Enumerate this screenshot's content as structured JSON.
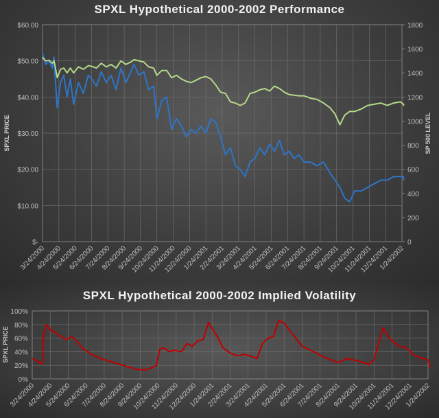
{
  "chart_data": [
    {
      "type": "line",
      "title": "SPXL Hypothetical 2000-2002 Performance",
      "ylabel": "SPXL PRICE",
      "y2label": "SP 500 LEVEL",
      "ylim": [
        0,
        60
      ],
      "y2lim": [
        0,
        1800
      ],
      "y_ticks": [
        "$60.00",
        "$50.00",
        "$40.00",
        "$30.00",
        "$20.00",
        "$10.00",
        "$-"
      ],
      "y2_ticks": [
        "1800",
        "1600",
        "1400",
        "1200",
        "1000",
        "800",
        "600",
        "400",
        "200",
        "0"
      ],
      "x_ticks": [
        "3/24/2000",
        "4/24/2000",
        "5/24/2000",
        "6/24/2000",
        "7/24/2000",
        "8/24/2000",
        "9/24/2000",
        "10/24/2000",
        "11/24/2000",
        "12/24/2000",
        "1/24/2001",
        "2/24/2001",
        "3/24/2001",
        "4/24/2001",
        "5/24/2001",
        "6/24/2001",
        "7/24/2001",
        "8/24/2001",
        "9/24/2001",
        "10/24/2001",
        "11/24/2001",
        "12/24/2001",
        "1/24/2002"
      ],
      "grid": true,
      "series": [
        {
          "name": "SPXL",
          "axis": "left",
          "color": "#2e75c8",
          "x": [
            0,
            0.2,
            0.4,
            0.6,
            0.7,
            0.75,
            0.9,
            1.1,
            1.3,
            1.5,
            1.7,
            1.9,
            2.2,
            2.5,
            2.8,
            3.0,
            3.3,
            3.6,
            3.9,
            4.2,
            4.5,
            4.8,
            5.1,
            5.4,
            5.6,
            5.9,
            6.2,
            6.5,
            6.8,
            7.0,
            7.3,
            7.6,
            7.9,
            8.2,
            8.5,
            8.8,
            9.1,
            9.4,
            9.7,
            10.0,
            10.3,
            10.6,
            10.9,
            11.2,
            11.5,
            11.8,
            12.1,
            12.4,
            12.7,
            13.0,
            13.3,
            13.6,
            13.9,
            14.2,
            14.5,
            14.8,
            15.1,
            15.4,
            15.7,
            16.0,
            16.4,
            16.8,
            17.2,
            17.6,
            17.9,
            18.2,
            18.5,
            18.8,
            19.1,
            19.5,
            19.9,
            20.3,
            20.7,
            21.1,
            21.5,
            21.9,
            22.3,
            22.6
          ],
          "values": [
            52,
            49,
            50,
            48,
            51,
            47,
            37,
            44,
            46,
            40,
            45,
            38,
            44,
            41,
            46,
            45,
            43,
            47,
            44,
            46,
            42,
            48,
            44,
            47,
            49,
            46,
            47,
            42,
            43,
            34,
            39,
            40,
            31,
            34,
            32,
            29,
            31,
            30,
            32,
            30,
            34,
            33,
            29,
            24,
            26,
            21,
            20,
            18,
            22,
            23,
            26,
            24,
            27,
            25,
            28,
            24,
            25,
            23,
            24,
            22,
            22,
            21,
            22,
            19,
            17,
            15,
            12,
            11,
            14,
            14,
            15,
            16,
            17,
            17,
            18,
            18,
            18,
            17
          ],
          "ylim_ref": "left"
        },
        {
          "name": "S&P 500",
          "axis": "right",
          "color": "#b5d98a",
          "x": [
            0,
            0.2,
            0.4,
            0.6,
            0.7,
            0.75,
            0.9,
            1.1,
            1.3,
            1.5,
            1.7,
            1.9,
            2.2,
            2.5,
            2.8,
            3.0,
            3.3,
            3.6,
            3.9,
            4.2,
            4.5,
            4.8,
            5.1,
            5.4,
            5.6,
            5.9,
            6.2,
            6.5,
            6.8,
            7.0,
            7.3,
            7.6,
            7.9,
            8.2,
            8.5,
            8.8,
            9.1,
            9.4,
            9.7,
            10.0,
            10.3,
            10.6,
            10.9,
            11.2,
            11.5,
            11.8,
            12.1,
            12.4,
            12.7,
            13.0,
            13.3,
            13.6,
            13.9,
            14.2,
            14.5,
            14.8,
            15.1,
            15.4,
            15.7,
            16.0,
            16.4,
            16.8,
            17.2,
            17.6,
            17.9,
            18.2,
            18.5,
            18.8,
            19.1,
            19.5,
            19.9,
            20.3,
            20.7,
            21.1,
            21.5,
            21.9,
            22.3,
            22.6
          ],
          "values": [
            1527,
            1500,
            1505,
            1480,
            1500,
            1470,
            1360,
            1430,
            1440,
            1400,
            1440,
            1400,
            1450,
            1430,
            1460,
            1455,
            1440,
            1480,
            1450,
            1470,
            1440,
            1500,
            1470,
            1490,
            1510,
            1500,
            1490,
            1450,
            1440,
            1380,
            1420,
            1420,
            1360,
            1380,
            1350,
            1330,
            1320,
            1340,
            1360,
            1370,
            1350,
            1300,
            1240,
            1230,
            1160,
            1150,
            1130,
            1150,
            1230,
            1240,
            1260,
            1270,
            1250,
            1290,
            1270,
            1240,
            1220,
            1215,
            1210,
            1210,
            1190,
            1180,
            1150,
            1110,
            1060,
            970,
            1050,
            1080,
            1080,
            1100,
            1130,
            1140,
            1150,
            1130,
            1150,
            1160,
            1140,
            1130
          ]
        }
      ]
    },
    {
      "type": "line",
      "title": "SPXL Hypothetical 2000-2002 Implied Volatility",
      "ylabel": "SPXL PRICE",
      "ylim": [
        0,
        100
      ],
      "y_ticks": [
        "100%",
        "80%",
        "60%",
        "40%",
        "20%",
        "0%"
      ],
      "x_ticks": [
        "3/24/2000",
        "4/24/2000",
        "5/24/2000",
        "6/24/2000",
        "7/24/2000",
        "8/24/2000",
        "9/24/2000",
        "10/24/2000",
        "11/24/2000",
        "12/24/2000",
        "1/24/2001",
        "2/24/2001",
        "3/24/2001",
        "4/24/2001",
        "5/24/2001",
        "6/24/2001",
        "7/24/2001",
        "8/24/2001",
        "9/24/2001",
        "10/24/2001",
        "11/24/2001",
        "12/24/2001",
        "1/24/2002"
      ],
      "grid": true,
      "series": [
        {
          "name": "Implied Volatility",
          "color": "#c00000",
          "x": [
            0,
            0.55,
            0.65,
            0.8,
            1.0,
            1.3,
            1.6,
            1.9,
            2.2,
            2.4,
            2.8,
            3.3,
            3.8,
            4.3,
            4.8,
            5.3,
            5.8,
            6.3,
            6.6,
            6.9,
            7.1,
            7.3,
            7.6,
            7.9,
            8.3,
            8.6,
            8.9,
            9.2,
            9.5,
            9.8,
            10.1,
            10.3,
            10.6,
            11.0,
            11.4,
            11.8,
            12.2,
            12.5,
            12.8,
            13.1,
            13.4,
            13.7,
            14.0,
            14.5,
            15.0,
            15.5,
            16.0,
            16.5,
            17.0,
            17.5,
            18.0,
            18.4,
            18.7,
            19.0,
            19.5,
            19.9,
            20.4,
            20.8,
            21.2,
            21.6,
            22.0,
            22.4,
            22.8
          ],
          "values": [
            30,
            22,
            68,
            80,
            72,
            68,
            62,
            58,
            62,
            58,
            45,
            36,
            30,
            26,
            22,
            18,
            14,
            13,
            16,
            20,
            44,
            46,
            40,
            42,
            40,
            52,
            48,
            56,
            58,
            83,
            70,
            62,
            46,
            38,
            34,
            36,
            33,
            30,
            52,
            60,
            62,
            86,
            82,
            65,
            48,
            42,
            35,
            29,
            24,
            30,
            27,
            24,
            21,
            28,
            75,
            58,
            48,
            46,
            35,
            31,
            28,
            20,
            17
          ]
        }
      ]
    }
  ]
}
